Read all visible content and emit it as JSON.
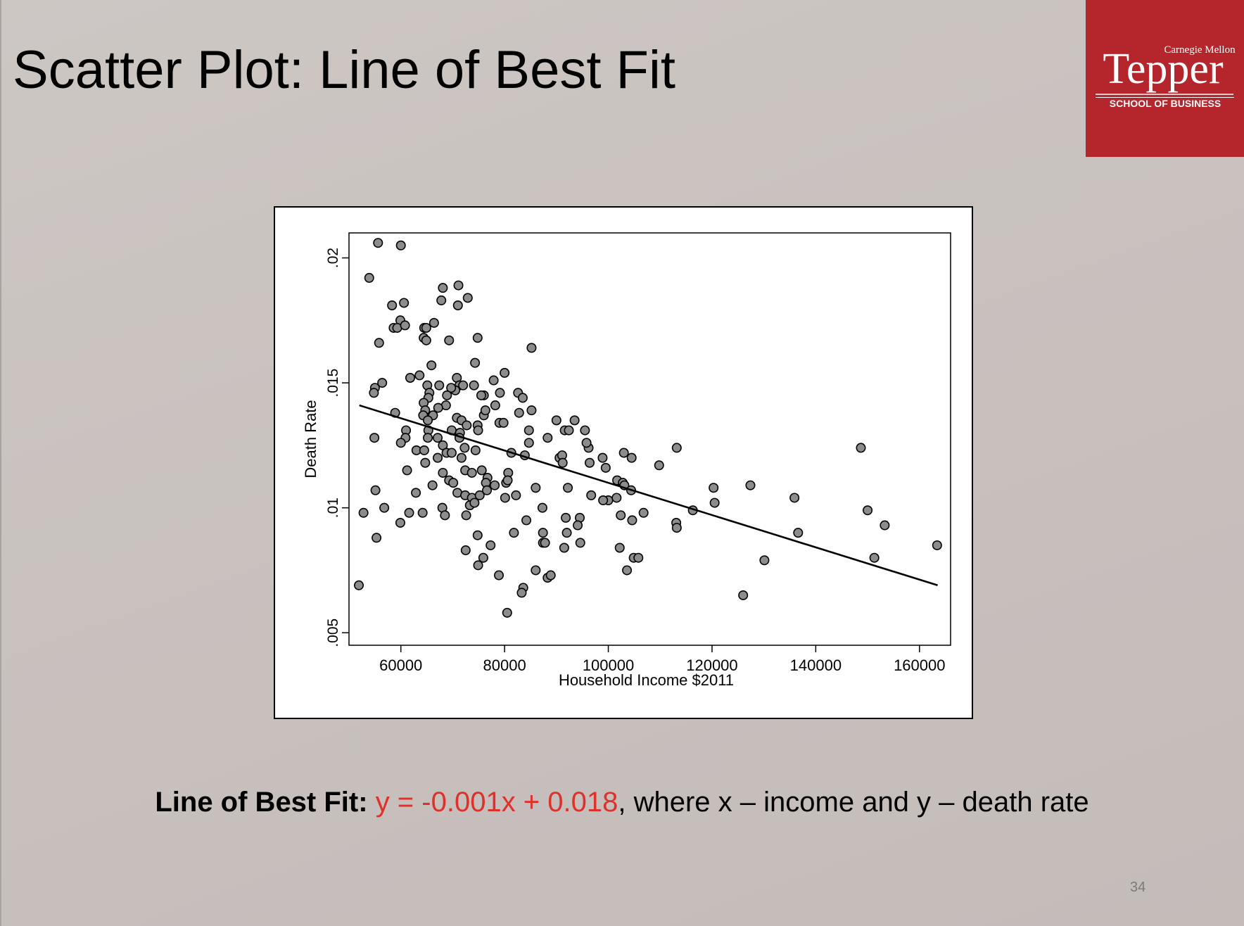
{
  "slide": {
    "title": "Scatter Plot: Line of Best Fit",
    "page_number": "34",
    "accent_color": "#e0302a"
  },
  "logo": {
    "university": "Carnegie Mellon",
    "name": "Tepper",
    "school": "SCHOOL OF BUSINESS",
    "color": "#b5262c"
  },
  "caption": {
    "label": "Line of Best Fit:",
    "equation": "y = -0.001x + 0.018",
    "rest": ", where  x – income and y – death rate"
  },
  "chart_data": {
    "type": "scatter",
    "xlabel": "Household Income $2011",
    "ylabel": "Death Rate",
    "xlim": [
      50000,
      166000
    ],
    "ylim": [
      0.0045,
      0.021
    ],
    "x_ticks": [
      60000,
      80000,
      100000,
      120000,
      140000,
      160000
    ],
    "x_tick_labels": [
      "60000",
      "80000",
      "100000",
      "120000",
      "140000",
      "160000"
    ],
    "y_ticks": [
      0.005,
      0.01,
      0.015,
      0.02
    ],
    "y_tick_labels": [
      ".005",
      ".01",
      ".015",
      ".02"
    ],
    "grid": false,
    "marker_color": "#8c8c8c",
    "fit_line": {
      "x": [
        52000,
        163500
      ],
      "y": [
        0.0141,
        0.0069
      ]
    },
    "points": [
      [
        55600,
        0.0206
      ],
      [
        60000,
        0.0205
      ],
      [
        53900,
        0.0192
      ],
      [
        68100,
        0.0188
      ],
      [
        71100,
        0.0189
      ],
      [
        72900,
        0.0184
      ],
      [
        67800,
        0.0183
      ],
      [
        71000,
        0.0181
      ],
      [
        58300,
        0.0181
      ],
      [
        60600,
        0.0182
      ],
      [
        59900,
        0.0175
      ],
      [
        58600,
        0.0172
      ],
      [
        59300,
        0.0172
      ],
      [
        60800,
        0.0173
      ],
      [
        64500,
        0.0172
      ],
      [
        64900,
        0.0172
      ],
      [
        66400,
        0.0174
      ],
      [
        64400,
        0.0168
      ],
      [
        64900,
        0.0167
      ],
      [
        69300,
        0.0167
      ],
      [
        74800,
        0.0168
      ],
      [
        55800,
        0.0166
      ],
      [
        85200,
        0.0164
      ],
      [
        65900,
        0.0157
      ],
      [
        74300,
        0.0158
      ],
      [
        63600,
        0.0153
      ],
      [
        61800,
        0.0152
      ],
      [
        70800,
        0.0152
      ],
      [
        77900,
        0.0151
      ],
      [
        80000,
        0.0154
      ],
      [
        56400,
        0.015
      ],
      [
        55000,
        0.0148
      ],
      [
        54800,
        0.0146
      ],
      [
        65100,
        0.0149
      ],
      [
        67400,
        0.0149
      ],
      [
        71300,
        0.0149
      ],
      [
        72000,
        0.0149
      ],
      [
        74100,
        0.0149
      ],
      [
        70500,
        0.0147
      ],
      [
        69700,
        0.0148
      ],
      [
        68900,
        0.0145
      ],
      [
        65500,
        0.0146
      ],
      [
        65300,
        0.0144
      ],
      [
        64400,
        0.0142
      ],
      [
        68700,
        0.0141
      ],
      [
        76000,
        0.0145
      ],
      [
        75500,
        0.0145
      ],
      [
        79100,
        0.0146
      ],
      [
        82600,
        0.0146
      ],
      [
        83500,
        0.0144
      ],
      [
        78200,
        0.0141
      ],
      [
        67200,
        0.014
      ],
      [
        64700,
        0.0139
      ],
      [
        76000,
        0.0137
      ],
      [
        76300,
        0.0139
      ],
      [
        82800,
        0.0138
      ],
      [
        85200,
        0.0139
      ],
      [
        58900,
        0.0138
      ],
      [
        64300,
        0.0137
      ],
      [
        66200,
        0.0137
      ],
      [
        65200,
        0.0135
      ],
      [
        70800,
        0.0136
      ],
      [
        71700,
        0.0135
      ],
      [
        72700,
        0.0133
      ],
      [
        74800,
        0.0133
      ],
      [
        79000,
        0.0134
      ],
      [
        79800,
        0.0134
      ],
      [
        90000,
        0.0135
      ],
      [
        93500,
        0.0135
      ],
      [
        61000,
        0.0131
      ],
      [
        65300,
        0.0131
      ],
      [
        69800,
        0.0131
      ],
      [
        71400,
        0.013
      ],
      [
        74900,
        0.0131
      ],
      [
        84700,
        0.0131
      ],
      [
        91600,
        0.0131
      ],
      [
        92400,
        0.0131
      ],
      [
        95500,
        0.0131
      ],
      [
        60900,
        0.0128
      ],
      [
        65200,
        0.0128
      ],
      [
        67100,
        0.0128
      ],
      [
        71300,
        0.0128
      ],
      [
        88300,
        0.0128
      ],
      [
        54900,
        0.0128
      ],
      [
        60000,
        0.0126
      ],
      [
        63000,
        0.0123
      ],
      [
        64500,
        0.0123
      ],
      [
        68100,
        0.0125
      ],
      [
        68800,
        0.0122
      ],
      [
        69800,
        0.0122
      ],
      [
        72300,
        0.0124
      ],
      [
        74400,
        0.0123
      ],
      [
        84700,
        0.0126
      ],
      [
        96200,
        0.0124
      ],
      [
        95800,
        0.0126
      ],
      [
        103000,
        0.0122
      ],
      [
        113200,
        0.0124
      ],
      [
        81300,
        0.0122
      ],
      [
        83900,
        0.0121
      ],
      [
        67100,
        0.012
      ],
      [
        71700,
        0.012
      ],
      [
        90600,
        0.012
      ],
      [
        91100,
        0.0121
      ],
      [
        98900,
        0.012
      ],
      [
        104500,
        0.012
      ],
      [
        148700,
        0.0124
      ],
      [
        64700,
        0.0118
      ],
      [
        61200,
        0.0115
      ],
      [
        72400,
        0.0115
      ],
      [
        75600,
        0.0115
      ],
      [
        91200,
        0.0118
      ],
      [
        96400,
        0.0118
      ],
      [
        99500,
        0.0116
      ],
      [
        109800,
        0.0117
      ],
      [
        68100,
        0.0114
      ],
      [
        73700,
        0.0114
      ],
      [
        76700,
        0.0112
      ],
      [
        80700,
        0.0114
      ],
      [
        69300,
        0.0111
      ],
      [
        70100,
        0.011
      ],
      [
        66100,
        0.0109
      ],
      [
        76400,
        0.011
      ],
      [
        78100,
        0.0109
      ],
      [
        80300,
        0.011
      ],
      [
        80600,
        0.0111
      ],
      [
        86000,
        0.0108
      ],
      [
        92200,
        0.0108
      ],
      [
        101700,
        0.0111
      ],
      [
        102800,
        0.011
      ],
      [
        103100,
        0.0109
      ],
      [
        55100,
        0.0107
      ],
      [
        62900,
        0.0106
      ],
      [
        70900,
        0.0106
      ],
      [
        72400,
        0.0105
      ],
      [
        73700,
        0.0104
      ],
      [
        75200,
        0.0105
      ],
      [
        76600,
        0.0107
      ],
      [
        80100,
        0.0104
      ],
      [
        82200,
        0.0105
      ],
      [
        96700,
        0.0105
      ],
      [
        100000,
        0.0103
      ],
      [
        101600,
        0.0104
      ],
      [
        104400,
        0.0107
      ],
      [
        120300,
        0.0108
      ],
      [
        127400,
        0.0109
      ],
      [
        135900,
        0.0104
      ],
      [
        56800,
        0.01
      ],
      [
        68000,
        0.01
      ],
      [
        73300,
        0.0101
      ],
      [
        74200,
        0.0102
      ],
      [
        87300,
        0.01
      ],
      [
        99000,
        0.0103
      ],
      [
        120500,
        0.0102
      ],
      [
        52800,
        0.0098
      ],
      [
        61600,
        0.0098
      ],
      [
        64200,
        0.0098
      ],
      [
        68500,
        0.0097
      ],
      [
        72600,
        0.0097
      ],
      [
        84200,
        0.0095
      ],
      [
        91800,
        0.0096
      ],
      [
        94500,
        0.0096
      ],
      [
        102400,
        0.0097
      ],
      [
        104600,
        0.0095
      ],
      [
        106800,
        0.0098
      ],
      [
        113100,
        0.0094
      ],
      [
        116300,
        0.0099
      ],
      [
        150000,
        0.0099
      ],
      [
        59900,
        0.0094
      ],
      [
        55300,
        0.0088
      ],
      [
        74800,
        0.0089
      ],
      [
        81800,
        0.009
      ],
      [
        87400,
        0.009
      ],
      [
        92000,
        0.009
      ],
      [
        94100,
        0.0093
      ],
      [
        113200,
        0.0092
      ],
      [
        136600,
        0.009
      ],
      [
        153300,
        0.0093
      ],
      [
        87400,
        0.0086
      ],
      [
        87800,
        0.0086
      ],
      [
        77300,
        0.0085
      ],
      [
        72500,
        0.0083
      ],
      [
        91500,
        0.0084
      ],
      [
        94600,
        0.0086
      ],
      [
        102200,
        0.0084
      ],
      [
        75900,
        0.008
      ],
      [
        104900,
        0.008
      ],
      [
        105800,
        0.008
      ],
      [
        130100,
        0.0079
      ],
      [
        151300,
        0.008
      ],
      [
        163400,
        0.0085
      ],
      [
        74900,
        0.0077
      ],
      [
        78900,
        0.0073
      ],
      [
        86000,
        0.0075
      ],
      [
        88300,
        0.0072
      ],
      [
        88900,
        0.0073
      ],
      [
        103600,
        0.0075
      ],
      [
        51900,
        0.0069
      ],
      [
        83600,
        0.0068
      ],
      [
        83300,
        0.0066
      ],
      [
        126000,
        0.0065
      ],
      [
        80500,
        0.0058
      ]
    ]
  }
}
